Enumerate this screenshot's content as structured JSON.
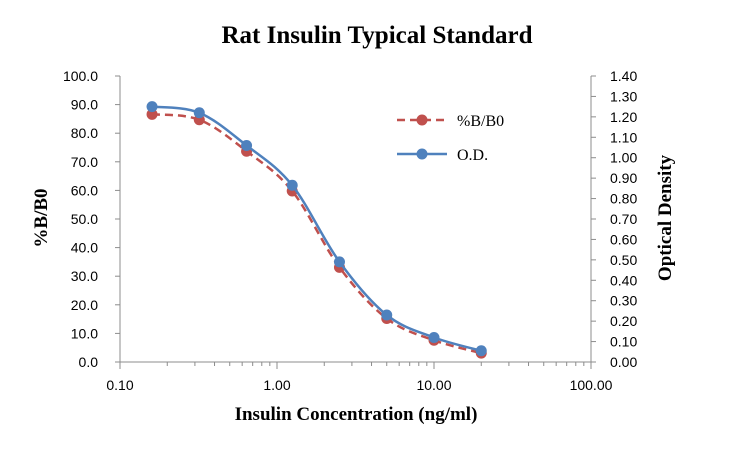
{
  "chart_data": {
    "type": "line",
    "title": "Rat Insulin Typical Standard",
    "xlabel": "Insulin  Concentration (ng/ml)",
    "ylabel_left": "%B/B0",
    "ylabel_right": "Optical Density",
    "x_scale": "log",
    "xlim": [
      0.1,
      100
    ],
    "ylim_left": [
      0,
      100
    ],
    "ylim_right": [
      0,
      1.4
    ],
    "x_ticks": [
      "0.10",
      "1.00",
      "10.00",
      "100.00"
    ],
    "y_left_ticks": [
      "0.0",
      "10.0",
      "20.0",
      "30.0",
      "40.0",
      "50.0",
      "60.0",
      "70.0",
      "80.0",
      "90.0",
      "100.0"
    ],
    "y_right_ticks": [
      "0.00",
      "0.10",
      "0.20",
      "0.30",
      "0.40",
      "0.50",
      "0.60",
      "0.70",
      "0.80",
      "0.90",
      "1.00",
      "1.10",
      "1.20",
      "1.30",
      "1.40"
    ],
    "legend_position": "top-right",
    "series": [
      {
        "name": "%B/B0",
        "axis": "left",
        "color": "#C0504D",
        "style": "dashed",
        "x": [
          0.16,
          0.32,
          0.64,
          1.25,
          2.5,
          5.0,
          10.0,
          20.0
        ],
        "values": [
          86.6,
          84.7,
          73.7,
          59.8,
          33.1,
          15.2,
          7.6,
          3.1
        ]
      },
      {
        "name": "O.D.",
        "axis": "right",
        "color": "#4F81BD",
        "style": "solid",
        "x": [
          0.16,
          0.32,
          0.64,
          1.25,
          2.5,
          5.0,
          10.0,
          20.0
        ],
        "values": [
          1.25,
          1.22,
          1.06,
          0.865,
          0.49,
          0.23,
          0.12,
          0.055
        ]
      }
    ]
  }
}
